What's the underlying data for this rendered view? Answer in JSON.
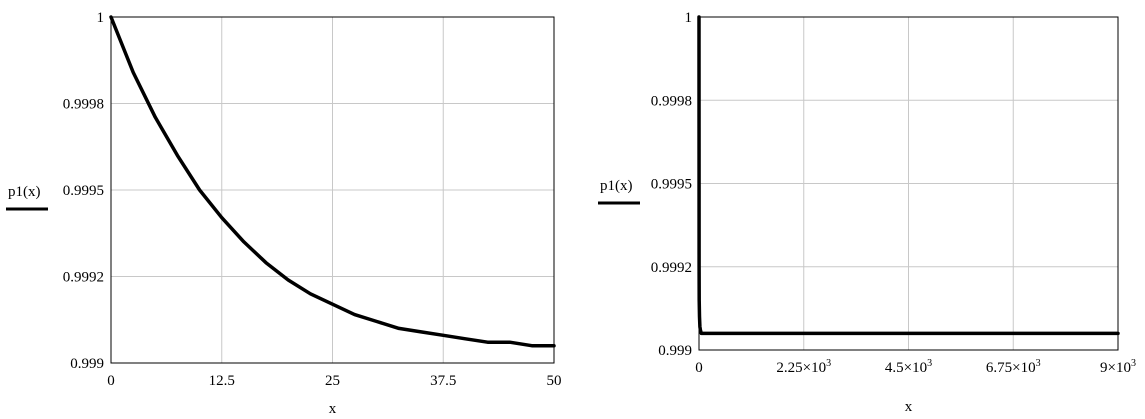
{
  "chart_data": [
    {
      "type": "line",
      "xlabel": "x",
      "ylabel": "p1(x)",
      "xlim": [
        0,
        50
      ],
      "ylim": [
        0.999,
        1
      ],
      "xticks": [
        "0",
        "12.5",
        "25",
        "37.5",
        "50"
      ],
      "xtick_values": [
        0,
        12.5,
        25,
        37.5,
        50
      ],
      "yticks": [
        "0.999",
        "0.9992",
        "0.9995",
        "0.9998",
        "1"
      ],
      "ytick_values": [
        0.999,
        0.99925,
        0.9995,
        0.99975,
        1
      ],
      "grid": true,
      "line_color": "#000000",
      "series": [
        {
          "x": [
            0,
            2.5,
            5,
            7.5,
            10,
            12.5,
            15,
            17.5,
            20,
            22.5,
            25,
            27.5,
            30,
            32.5,
            35,
            37.5,
            40,
            42.5,
            45,
            47.5,
            50
          ],
          "values": [
            1.0,
            0.99984,
            0.99971,
            0.9996,
            0.9995,
            0.99942,
            0.99935,
            0.99929,
            0.99924,
            0.9992,
            0.99917,
            0.99914,
            0.99912,
            0.9991,
            0.99909,
            0.99908,
            0.99907,
            0.99906,
            0.99906,
            0.99905,
            0.99905
          ]
        }
      ]
    },
    {
      "type": "line",
      "xlabel": "x",
      "ylabel": "p1(x)",
      "xlim": [
        0,
        9000
      ],
      "ylim": [
        0.999,
        1
      ],
      "xticks": [
        {
          "base": "0",
          "exp": ""
        },
        {
          "base": "2.25×10",
          "exp": "3"
        },
        {
          "base": "4.5×10",
          "exp": "3"
        },
        {
          "base": "6.75×10",
          "exp": "3"
        },
        {
          "base": "9×10",
          "exp": "3"
        }
      ],
      "xtick_values": [
        0,
        2250,
        4500,
        6750,
        9000
      ],
      "yticks": [
        "0.999",
        "0.9992",
        "0.9995",
        "0.9998",
        "1"
      ],
      "ytick_values": [
        0.999,
        0.99925,
        0.9995,
        0.99975,
        1
      ],
      "grid": true,
      "line_color": "#000000",
      "series": [
        {
          "x": [
            0,
            2,
            5,
            10,
            20,
            30,
            50,
            100,
            9000
          ],
          "values": [
            1.0,
            0.99925,
            0.99915,
            0.9991,
            0.99907,
            0.99906,
            0.99905,
            0.99905,
            0.99905
          ]
        }
      ]
    }
  ]
}
